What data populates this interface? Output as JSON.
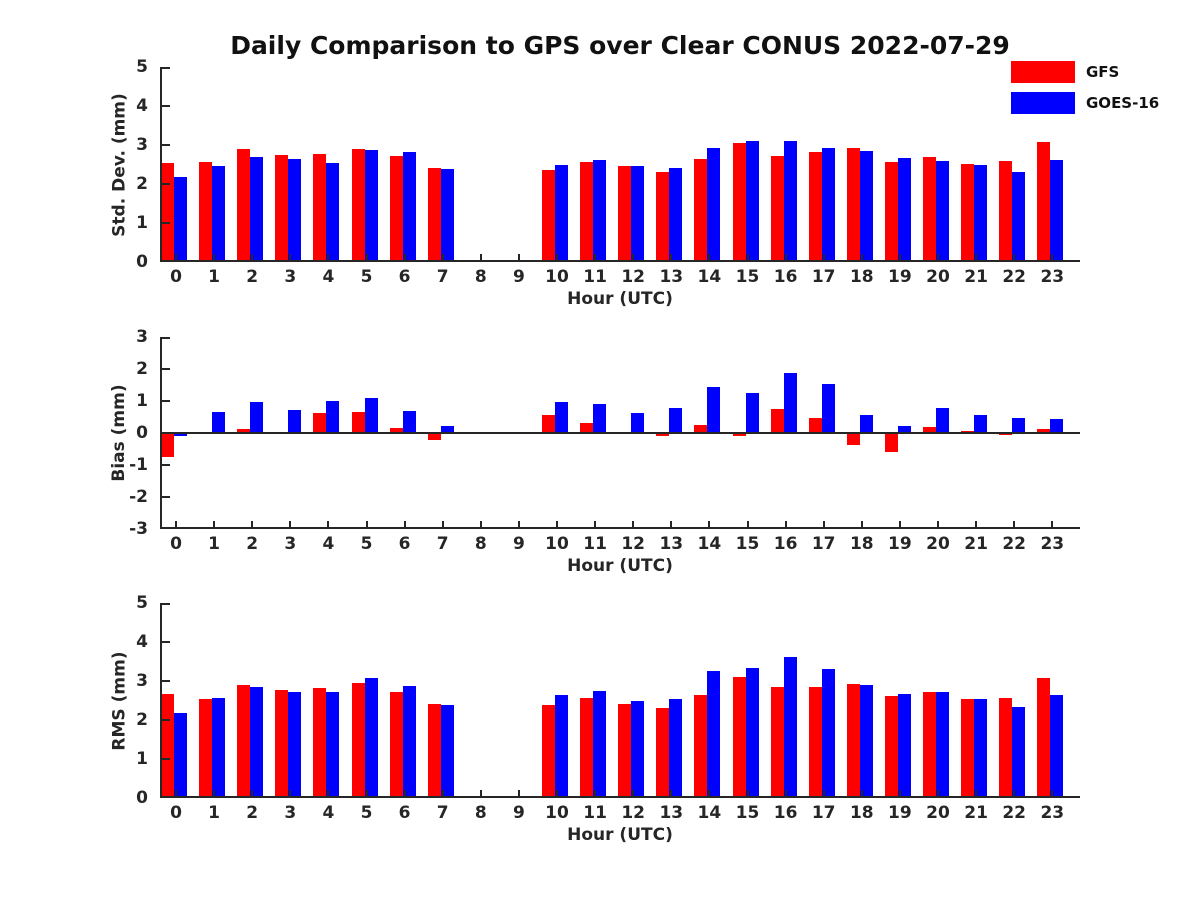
{
  "title": "Daily Comparison to GPS over Clear CONUS 2022-07-29",
  "legend": {
    "items": [
      {
        "label": "GFS",
        "color": "#ff0000"
      },
      {
        "label": "GOES-16",
        "color": "#0000ff"
      }
    ]
  },
  "colors": {
    "gfs": "#ff0000",
    "goes16": "#0000ff",
    "axis": "#262626"
  },
  "chart_data": [
    {
      "type": "bar",
      "title": "",
      "ylabel": "Std. Dev. (mm)",
      "xlabel": "Hour (UTC)",
      "ylim": [
        0,
        5
      ],
      "yticks": [
        0,
        1,
        2,
        3,
        4,
        5
      ],
      "grid": false,
      "legend_position": "top-right-outside",
      "categories": [
        "0",
        "1",
        "2",
        "3",
        "4",
        "5",
        "6",
        "7",
        "8",
        "9",
        "10",
        "11",
        "12",
        "13",
        "14",
        "15",
        "16",
        "17",
        "18",
        "19",
        "20",
        "21",
        "22",
        "23"
      ],
      "series": [
        {
          "name": "GFS",
          "values": [
            2.55,
            2.56,
            2.9,
            2.75,
            2.77,
            2.9,
            2.72,
            2.42,
            null,
            null,
            2.37,
            2.57,
            2.45,
            2.3,
            2.63,
            3.05,
            2.73,
            2.82,
            2.92,
            2.56,
            2.7,
            2.52,
            2.58,
            3.07
          ]
        },
        {
          "name": "GOES-16",
          "values": [
            2.18,
            2.47,
            2.69,
            2.63,
            2.53,
            2.88,
            2.83,
            2.39,
            null,
            null,
            2.49,
            2.62,
            2.45,
            2.41,
            2.92,
            3.1,
            3.11,
            2.93,
            2.85,
            2.66,
            2.6,
            2.48,
            2.3,
            2.62
          ]
        }
      ]
    },
    {
      "type": "bar",
      "title": "",
      "ylabel": "Bias (mm)",
      "xlabel": "Hour (UTC)",
      "ylim": [
        -3,
        3
      ],
      "yticks": [
        -3,
        -2,
        -1,
        0,
        1,
        2,
        3
      ],
      "grid": false,
      "categories": [
        "0",
        "1",
        "2",
        "3",
        "4",
        "5",
        "6",
        "7",
        "8",
        "9",
        "10",
        "11",
        "12",
        "13",
        "14",
        "15",
        "16",
        "17",
        "18",
        "19",
        "20",
        "21",
        "22",
        "23"
      ],
      "series": [
        {
          "name": "GFS",
          "values": [
            -0.75,
            0.0,
            0.13,
            0.0,
            0.62,
            0.66,
            0.16,
            -0.22,
            null,
            null,
            0.55,
            0.3,
            0.0,
            -0.1,
            0.25,
            -0.08,
            0.74,
            0.46,
            -0.37,
            -0.58,
            0.18,
            0.06,
            -0.05,
            0.12
          ]
        },
        {
          "name": "GOES-16",
          "values": [
            -0.1,
            0.65,
            0.97,
            0.72,
            1.0,
            1.1,
            0.68,
            0.23,
            null,
            null,
            0.97,
            0.9,
            0.63,
            0.78,
            1.45,
            1.25,
            1.88,
            1.52,
            0.56,
            0.22,
            0.78,
            0.57,
            0.47,
            0.45
          ]
        }
      ]
    },
    {
      "type": "bar",
      "title": "",
      "ylabel": "RMS (mm)",
      "xlabel": "Hour (UTC)",
      "ylim": [
        0,
        5
      ],
      "yticks": [
        0,
        1,
        2,
        3,
        4,
        5
      ],
      "grid": false,
      "categories": [
        "0",
        "1",
        "2",
        "3",
        "4",
        "5",
        "6",
        "7",
        "8",
        "9",
        "10",
        "11",
        "12",
        "13",
        "14",
        "15",
        "16",
        "17",
        "18",
        "19",
        "20",
        "21",
        "22",
        "23"
      ],
      "series": [
        {
          "name": "GFS",
          "values": [
            2.67,
            2.55,
            2.89,
            2.76,
            2.83,
            2.94,
            2.73,
            2.41,
            null,
            null,
            2.39,
            2.57,
            2.42,
            2.32,
            2.63,
            3.09,
            2.85,
            2.85,
            2.92,
            2.61,
            2.72,
            2.53,
            2.57,
            3.08
          ]
        },
        {
          "name": "GOES-16",
          "values": [
            2.18,
            2.56,
            2.85,
            2.73,
            2.73,
            3.08,
            2.87,
            2.39,
            null,
            null,
            2.65,
            2.74,
            2.5,
            2.53,
            3.25,
            3.33,
            3.62,
            3.32,
            2.89,
            2.67,
            2.72,
            2.53,
            2.33,
            2.65
          ]
        }
      ]
    }
  ]
}
